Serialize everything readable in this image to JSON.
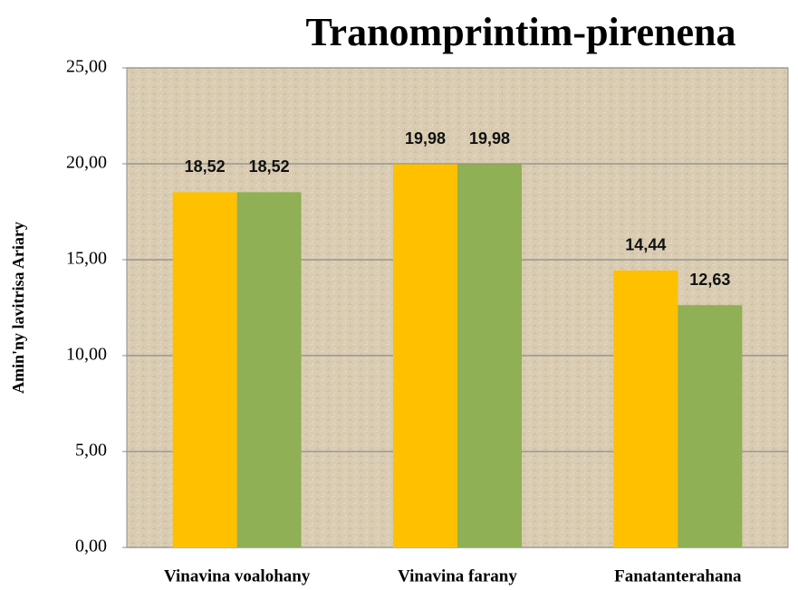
{
  "chart_data": {
    "type": "bar",
    "title": "Tranomprintim-pirenena",
    "y_label": "Amin'ny lavitrisa Ariary",
    "categories": [
      "Vinavina voalohany",
      "Vinavina farany",
      "Fanatanterahana"
    ],
    "series": [
      {
        "color": "#ffc000",
        "values": [
          18.52,
          19.98,
          14.44
        ],
        "value_labels": [
          "18,52",
          "19,98",
          "14,44"
        ]
      },
      {
        "color": "#8fb054",
        "values": [
          18.52,
          19.98,
          12.63
        ],
        "value_labels": [
          "18,52",
          "19,98",
          "12,63"
        ]
      }
    ],
    "ylim": [
      0,
      25
    ],
    "yticks": [
      {
        "value": 0,
        "label": "0,00"
      },
      {
        "value": 5,
        "label": "5,00"
      },
      {
        "value": 10,
        "label": "10,00"
      },
      {
        "value": 15,
        "label": "15,00"
      },
      {
        "value": 20,
        "label": "20,00"
      },
      {
        "value": 25,
        "label": "25,00"
      }
    ],
    "grid": true
  }
}
